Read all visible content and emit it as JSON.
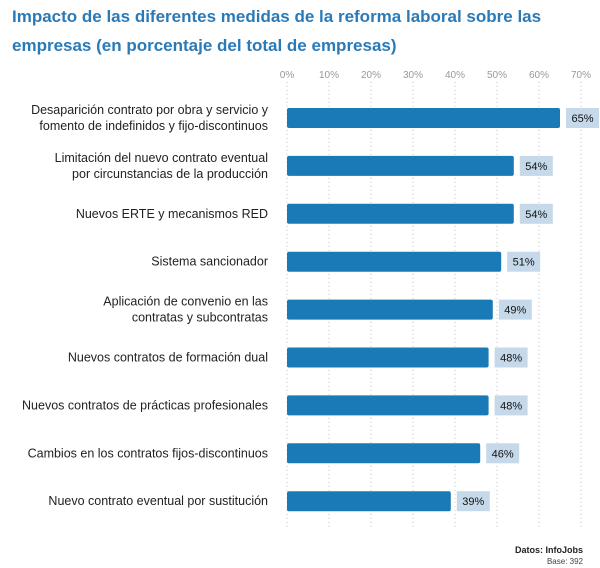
{
  "chart_data": {
    "type": "bar",
    "orientation": "horizontal",
    "title": "Impacto de las diferentes medidas de la reforma laboral sobre las empresas (en porcentaje del total de empresas)",
    "categories": [
      [
        "Desaparición contrato por obra y servicio y",
        "fomento de indefinidos y fijo-discontinuos"
      ],
      [
        "Limitación del nuevo contrato eventual",
        "por circunstancias de la producción"
      ],
      [
        "Nuevos ERTE y mecanismos RED"
      ],
      [
        "Sistema sancionador"
      ],
      [
        "Aplicación de convenio en las",
        "contratas y subcontratas"
      ],
      [
        "Nuevos contratos de formación dual"
      ],
      [
        "Nuevos contratos de prácticas profesionales"
      ],
      [
        "Cambios en los contratos fijos-discontinuos"
      ],
      [
        "Nuevo contrato eventual por sustitución"
      ]
    ],
    "values": [
      65,
      54,
      54,
      51,
      49,
      48,
      48,
      46,
      39
    ],
    "value_labels": [
      "65%",
      "54%",
      "54%",
      "51%",
      "49%",
      "48%",
      "48%",
      "46%",
      "39%"
    ],
    "x_ticks": [
      0,
      10,
      20,
      30,
      40,
      50,
      60,
      70
    ],
    "x_tick_labels": [
      "0%",
      "10%",
      "20%",
      "30%",
      "40%",
      "50%",
      "60%",
      "70%"
    ],
    "xlim": [
      0,
      70
    ],
    "grid": "vertical dotted",
    "legend": "none",
    "bar_color": "#1a7ab8",
    "label_box_color": "#c5d9ea"
  },
  "source": {
    "label": "Datos: InfoJobs",
    "base": "Base: 392"
  }
}
